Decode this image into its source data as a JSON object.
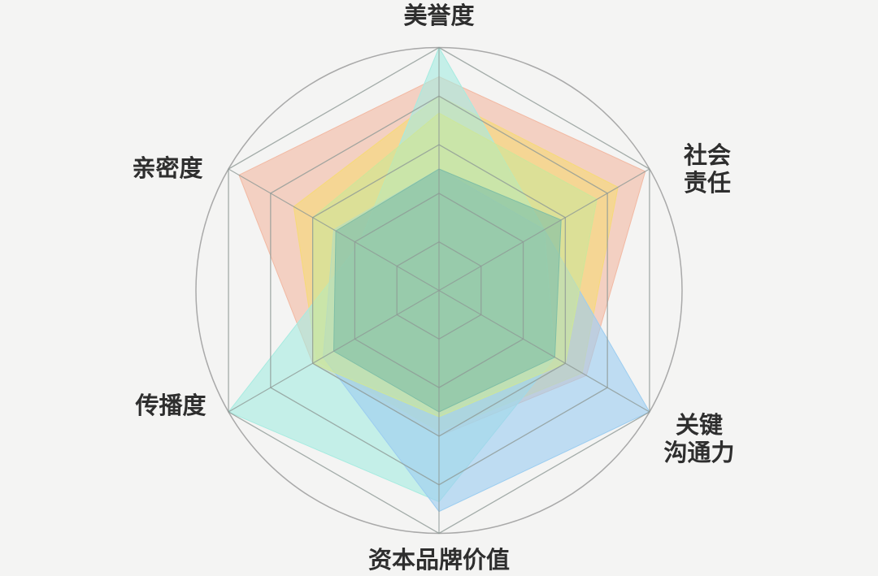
{
  "chart_data": {
    "type": "radar",
    "axes": [
      "美誉度",
      "社会责任",
      "关键沟通力",
      "资本品牌价值",
      "传播度",
      "亲密度"
    ],
    "axis_labels_display": [
      "美誉度",
      "社会\n责任",
      "关键\n沟通力",
      "资本品牌价值",
      "传播度",
      "亲密度"
    ],
    "range": [
      0,
      1
    ],
    "grid_levels": 5,
    "grid": true,
    "outer_circle": true,
    "series": [
      {
        "color": "#f2b9a3",
        "values": [
          0.88,
          0.98,
          0.7,
          0.6,
          0.6,
          0.95
        ]
      },
      {
        "color": "#f6da78",
        "values": [
          0.8,
          0.85,
          0.68,
          0.58,
          0.58,
          0.69
        ]
      },
      {
        "color": "#a6ebe0",
        "values": [
          1.0,
          0.5,
          0.55,
          0.87,
          1.0,
          0.38
        ]
      },
      {
        "color": "#9ccdf0",
        "values": [
          0.5,
          0.5,
          1.0,
          0.91,
          0.55,
          0.5
        ]
      },
      {
        "color": "#cde69a",
        "values": [
          0.73,
          0.75,
          0.6,
          0.52,
          0.6,
          0.6
        ]
      },
      {
        "color": "#7fbea6",
        "values": [
          0.5,
          0.58,
          0.55,
          0.5,
          0.5,
          0.49
        ]
      }
    ]
  }
}
